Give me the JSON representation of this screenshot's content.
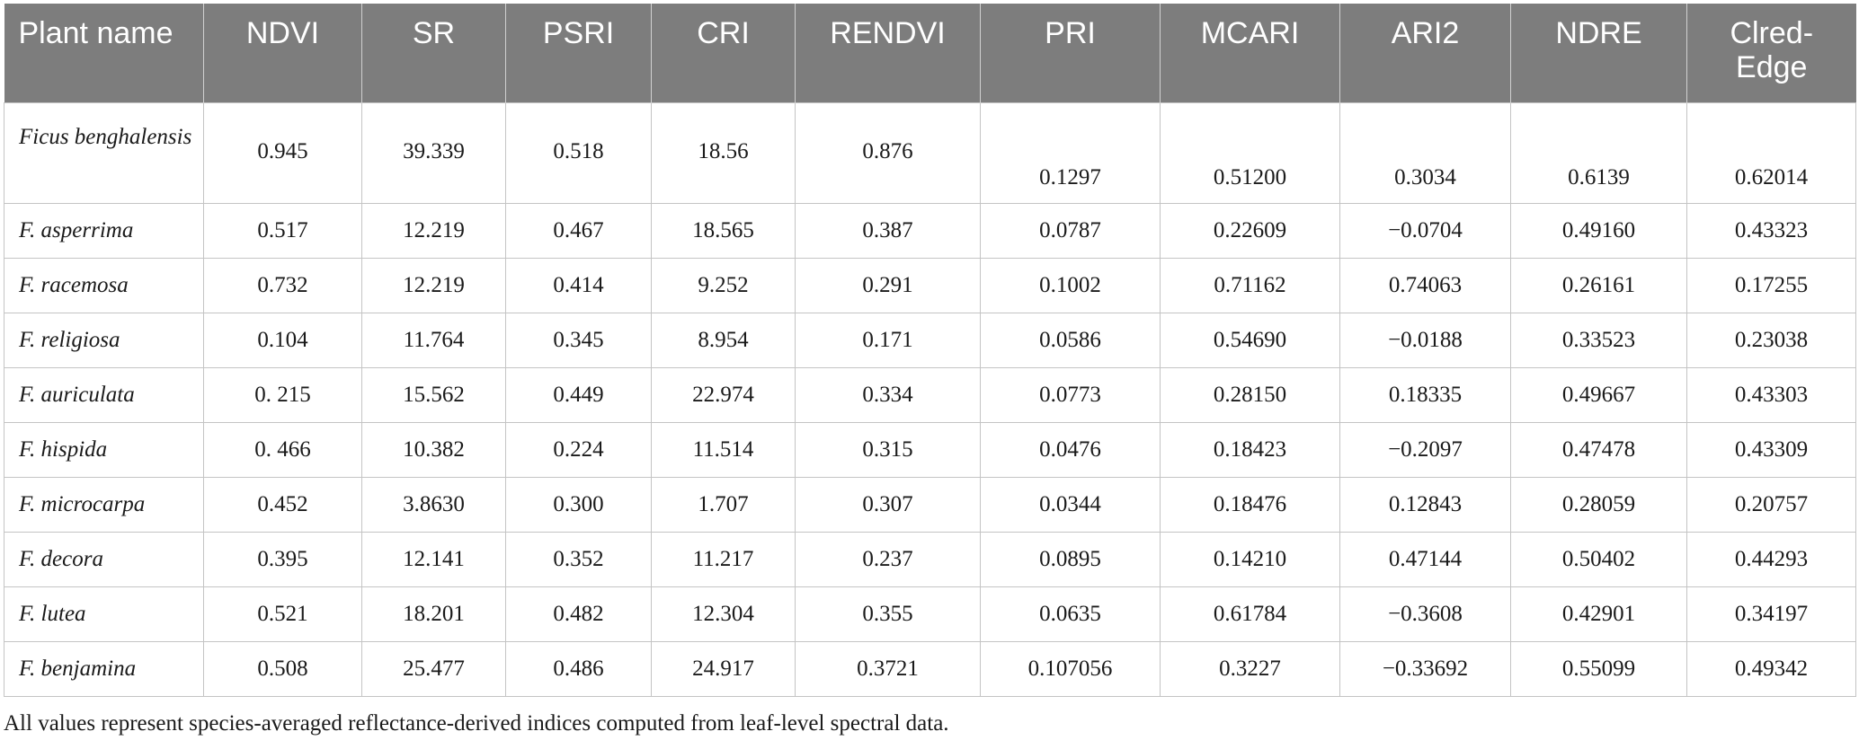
{
  "table": {
    "columns": [
      "Plant name",
      "NDVI",
      "SR",
      "PSRI",
      "CRI",
      "RENDVI",
      "PRI",
      "MCARI",
      "ARI2",
      "NDRE",
      "Clred-Edge"
    ],
    "rows": [
      [
        "Ficus benghalensis",
        "0.945",
        "39.339",
        "0.518",
        "18.56",
        "0.876",
        "0.1297",
        "0.51200",
        "0.3034",
        "0.6139",
        "0.62014"
      ],
      [
        "F. asperrima",
        "0.517",
        "12.219",
        "0.467",
        "18.565",
        "0.387",
        "0.0787",
        "0.22609",
        "−0.0704",
        "0.49160",
        "0.43323"
      ],
      [
        "F. racemosa",
        "0.732",
        "12.219",
        "0.414",
        "9.252",
        "0.291",
        "0.1002",
        "0.71162",
        "0.74063",
        "0.26161",
        "0.17255"
      ],
      [
        "F. religiosa",
        "0.104",
        "11.764",
        "0.345",
        "8.954",
        "0.171",
        "0.0586",
        "0.54690",
        "−0.0188",
        "0.33523",
        "0.23038"
      ],
      [
        "F. auriculata",
        "0. 215",
        "15.562",
        "0.449",
        "22.974",
        "0.334",
        "0.0773",
        "0.28150",
        "0.18335",
        "0.49667",
        "0.43303"
      ],
      [
        "F. hispida",
        "0. 466",
        "10.382",
        "0.224",
        "11.514",
        "0.315",
        "0.0476",
        "0.18423",
        "−0.2097",
        "0.47478",
        "0.43309"
      ],
      [
        "F. microcarpa",
        "0.452",
        "3.8630",
        "0.300",
        "1.707",
        "0.307",
        "0.0344",
        "0.18476",
        "0.12843",
        "0.28059",
        "0.20757"
      ],
      [
        "F. decora",
        "0.395",
        "12.141",
        "0.352",
        "11.217",
        "0.237",
        "0.0895",
        "0.14210",
        "0.47144",
        "0.50402",
        "0.44293"
      ],
      [
        "F. lutea",
        "0.521",
        "18.201",
        "0.482",
        "12.304",
        "0.355",
        "0.0635",
        "0.61784",
        "−0.3608",
        "0.42901",
        "0.34197"
      ],
      [
        "F. benjamina",
        "0.508",
        "25.477",
        "0.486",
        "24.917",
        "0.3721",
        "0.107056",
        "0.3227",
        "−0.33692",
        "0.55099",
        "0.49342"
      ]
    ]
  },
  "footnote": "All values represent species-averaged reflectance-derived indices computed from leaf-level spectral data."
}
